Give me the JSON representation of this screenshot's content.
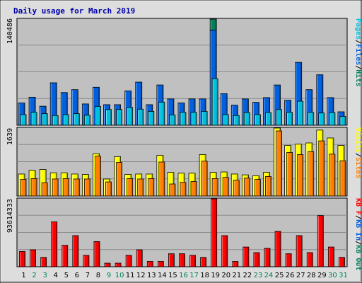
{
  "title": "Daily usage for March 2019",
  "colors": {
    "frame": "#dddddd",
    "plot_bg": "#c0c0c0",
    "title": "#0000aa",
    "pages": "#00c0e0",
    "files": "#0060e0",
    "hits": "#00805c",
    "visits": "#ffff00",
    "sites": "#ff8000",
    "kbytes": "#ff0000",
    "weekday": "#000000",
    "weekend": "#00805c"
  },
  "chart_data": {
    "type": "bar",
    "categories": [
      "1",
      "2",
      "3",
      "4",
      "5",
      "6",
      "7",
      "8",
      "9",
      "10",
      "11",
      "12",
      "13",
      "14",
      "15",
      "16",
      "17",
      "18",
      "19",
      "20",
      "21",
      "22",
      "23",
      "24",
      "25",
      "26",
      "27",
      "28",
      "29",
      "30",
      "31"
    ],
    "weekend_days": [
      "2",
      "3",
      "9",
      "10",
      "16",
      "17",
      "23",
      "24",
      "30",
      "31"
    ],
    "panels": [
      {
        "id": "hits",
        "ymax_label": "140486",
        "ylim": [
          0,
          140486
        ],
        "legend": [
          {
            "label": "Pages",
            "color": "#00c0e0"
          },
          {
            "label": "/",
            "color": "#000000"
          },
          {
            "label": "Files",
            "color": "#0060e0"
          },
          {
            "label": "/",
            "color": "#000000"
          },
          {
            "label": "Hits",
            "color": "#00805c"
          }
        ],
        "series": [
          {
            "name": "Hits",
            "color": "#00805c",
            "values": [
              29500,
              37100,
              25200,
              56200,
              43300,
              47100,
              28200,
              50300,
              27200,
              27200,
              45400,
              57100,
              27200,
              53300,
              34800,
              29500,
              34800,
              34800,
              140486,
              41800,
              26600,
              34800,
              30300,
              36600,
              53300,
              33100,
              83200,
              47100,
              66800,
              36600,
              17800
            ]
          },
          {
            "name": "Files",
            "color": "#0060e0",
            "values": [
              29500,
              37100,
              25200,
              56200,
              43300,
              47100,
              28200,
              50300,
              27200,
              27200,
              45400,
              57100,
              27200,
              53300,
              34800,
              29500,
              34800,
              34800,
              125800,
              41800,
              26600,
              34800,
              30300,
              36600,
              53300,
              33100,
              83200,
              47100,
              66800,
              36600,
              17800
            ]
          },
          {
            "name": "Pages",
            "color": "#00c0e0",
            "values": [
              14100,
              17100,
              15400,
              12900,
              14100,
              15400,
              13300,
              25000,
              20800,
              20800,
              23600,
              21300,
              18300,
              30600,
              13700,
              17100,
              17100,
              18300,
              61600,
              14100,
              12900,
              16800,
              14100,
              16800,
              20800,
              17100,
              31800,
              17100,
              16200,
              16800,
              11700
            ]
          }
        ]
      },
      {
        "id": "visits",
        "ymax_label": "1639",
        "ylim": [
          0,
          1639
        ],
        "legend": [
          {
            "label": "Visits",
            "color": "#ffff00"
          },
          {
            "label": "/",
            "color": "#000000"
          },
          {
            "label": "Sites",
            "color": "#ff8000"
          }
        ],
        "series": [
          {
            "name": "Visits",
            "color": "#ffff00",
            "values": [
              530,
              620,
              640,
              560,
              560,
              530,
              520,
              1020,
              410,
              950,
              520,
              530,
              530,
              980,
              570,
              550,
              550,
              1000,
              570,
              580,
              530,
              510,
              490,
              570,
              1639,
              1220,
              1250,
              1280,
              1590,
              1400,
              1220
            ]
          },
          {
            "name": "Sites",
            "color": "#ff8000",
            "values": [
              400,
              420,
              320,
              410,
              420,
              410,
              410,
              960,
              340,
              810,
              420,
              410,
              420,
              820,
              290,
              330,
              350,
              840,
              420,
              450,
              380,
              430,
              400,
              470,
              1570,
              1050,
              1000,
              1070,
              1330,
              1010,
              850
            ]
          }
        ]
      },
      {
        "id": "kbytes",
        "ymax_label": "93614333",
        "ylim": [
          0,
          93614333
        ],
        "legend": [
          {
            "label": "KB F",
            "color": "#ff0000"
          },
          {
            "label": "/",
            "color": "#000000"
          },
          {
            "label": "KB In",
            "color": "#0060e0"
          },
          {
            "label": "/",
            "color": "#000000"
          },
          {
            "label": "KB Out",
            "color": "#00805c"
          }
        ],
        "series": [
          {
            "name": "KB F",
            "color": "#ff0000",
            "values": [
              21000,
              23400,
              12900,
              61800,
              29500,
              42900,
              15700,
              34700,
              4900,
              4900,
              15700,
              23400,
              7300,
              7300,
              17900,
              17900,
              15700,
              12900,
              93614,
              42900,
              7300,
              27200,
              19500,
              25300,
              48700,
              17900,
              42900,
              19500,
              70600,
              27200,
              12900
            ]
          }
        ]
      }
    ]
  }
}
